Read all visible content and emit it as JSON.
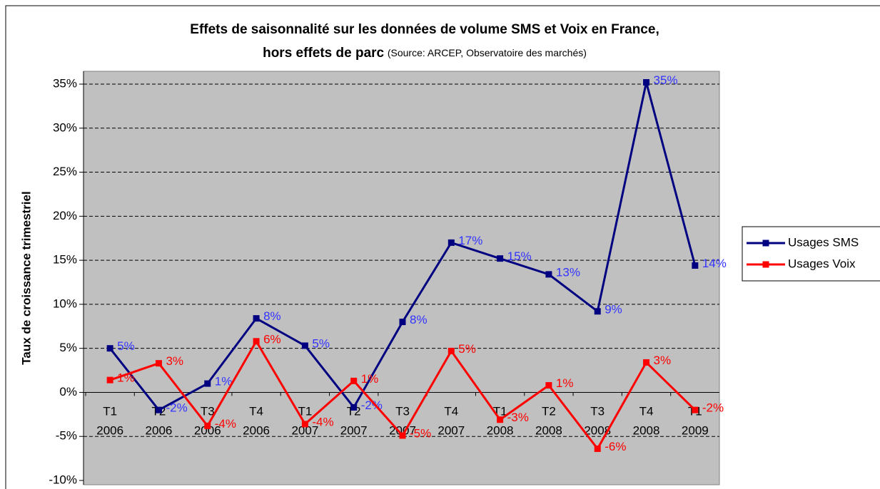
{
  "chart_data": {
    "type": "line",
    "title": [
      "Effets de saisonnalité sur les données de volume SMS et Voix en France,",
      "hors effets de parc"
    ],
    "source": "(Source: ARCEP, Observatoire des marchés)",
    "y_label": "Taux de croissance trimestriel",
    "categories": [
      "T1 2006",
      "T2 2006",
      "T3 2006",
      "T4 2006",
      "T1 2007",
      "T2 2007",
      "T3 2007",
      "T4 2007",
      "T1 2008",
      "T2 2008",
      "T3 2008",
      "T4 2008",
      "T1 2009"
    ],
    "series": [
      {
        "name": "Usages SMS",
        "color": "#000080",
        "label_color": "#3333ff",
        "values": [
          5,
          -2,
          1,
          8.4,
          5.3,
          -1.7,
          8,
          17,
          15.2,
          13.4,
          9.2,
          35.2,
          14.4
        ],
        "value_labels": [
          "5%",
          "-2%",
          "1%",
          "8%",
          "5%",
          "-2%",
          "8%",
          "17%",
          "15%",
          "13%",
          "9%",
          "35%",
          "14%"
        ]
      },
      {
        "name": "Usages Voix",
        "color": "#ff0000",
        "label_color": "#ff0000",
        "values": [
          1.4,
          3.3,
          -3.8,
          5.8,
          -3.6,
          1.3,
          -4.9,
          4.7,
          -3.1,
          0.8,
          -6.4,
          3.4,
          -2.0
        ],
        "value_labels": [
          "1%",
          "3%",
          "-4%",
          "6%",
          "-4%",
          "1%",
          "-5%",
          "5%",
          "-3%",
          "1%",
          "-6%",
          "3%",
          "-2%"
        ]
      }
    ],
    "ylim": [
      -10,
      35
    ],
    "yticks": [
      {
        "value": -10,
        "label": "-10%"
      },
      {
        "value": -5,
        "label": "-5%"
      },
      {
        "value": 0,
        "label": "0%"
      },
      {
        "value": 5,
        "label": "5%"
      },
      {
        "value": 10,
        "label": "10%"
      },
      {
        "value": 15,
        "label": "15%"
      },
      {
        "value": 20,
        "label": "20%"
      },
      {
        "value": 25,
        "label": "25%"
      },
      {
        "value": 30,
        "label": "30%"
      },
      {
        "value": 35,
        "label": "35%"
      }
    ],
    "grid": true,
    "legend": "right"
  }
}
